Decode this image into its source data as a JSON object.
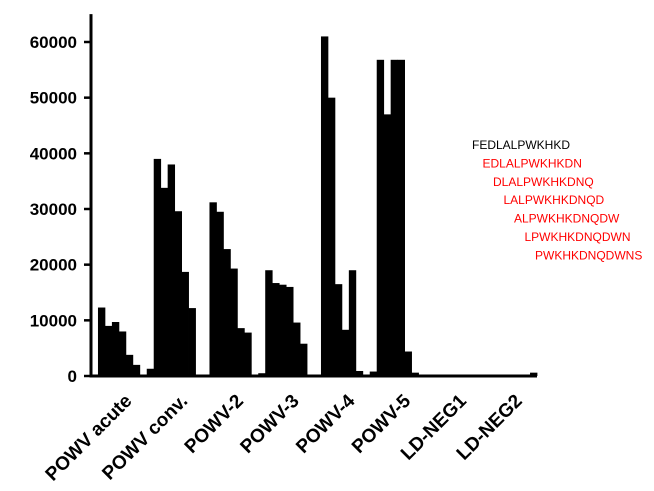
{
  "chart_data": {
    "type": "bar",
    "title": "",
    "xlabel": "",
    "ylabel": "",
    "ylim": [
      0,
      65000
    ],
    "yticks": [
      0,
      10000,
      20000,
      30000,
      40000,
      50000,
      60000
    ],
    "ytick_labels": [
      "0",
      "10000",
      "20000",
      "30000",
      "40000",
      "50000",
      "60000"
    ],
    "bar_color": "#000000",
    "groups": [
      {
        "label": "POWV acute",
        "values": [
          200,
          12300,
          9000,
          9700,
          8000,
          3800,
          2000,
          150
        ]
      },
      {
        "label": "POWV conv.",
        "values": [
          1300,
          39000,
          33800,
          38000,
          29600,
          18700,
          12200,
          150
        ]
      },
      {
        "label": "POWV-2",
        "values": [
          200,
          31200,
          29500,
          22800,
          19300,
          8600,
          7800,
          150
        ]
      },
      {
        "label": "POWV-3",
        "values": [
          500,
          19000,
          16700,
          16400,
          16000,
          9600,
          5800,
          150
        ]
      },
      {
        "label": "POWV-4",
        "values": [
          200,
          61000,
          50000,
          16500,
          8300,
          19000,
          900,
          150
        ]
      },
      {
        "label": "POWV-5",
        "values": [
          800,
          56800,
          47000,
          56800,
          56800,
          4400,
          600,
          150
        ]
      },
      {
        "label": "LD-NEG1",
        "values": [
          200,
          200,
          250,
          200,
          200,
          200,
          250,
          150
        ]
      },
      {
        "label": "LD-NEG2",
        "values": [
          250,
          200,
          200,
          200,
          250,
          200,
          200,
          600
        ]
      }
    ],
    "legend": {
      "placement": "right",
      "entries": [
        {
          "text": "FEDLALPWKHKD",
          "color": "#000000"
        },
        {
          "text": "EDLALPWKHKDN",
          "color": "#ff0000"
        },
        {
          "text": "DLALPWKHKDNQ",
          "color": "#ff0000"
        },
        {
          "text": "LALPWKHKDNQD",
          "color": "#ff0000"
        },
        {
          "text": "ALPWKHKDNQDW",
          "color": "#ff0000"
        },
        {
          "text": "LPWKHKDNQDWN",
          "color": "#ff0000"
        },
        {
          "text": "PWKHKDNQDWNS",
          "color": "#ff0000"
        }
      ]
    }
  }
}
